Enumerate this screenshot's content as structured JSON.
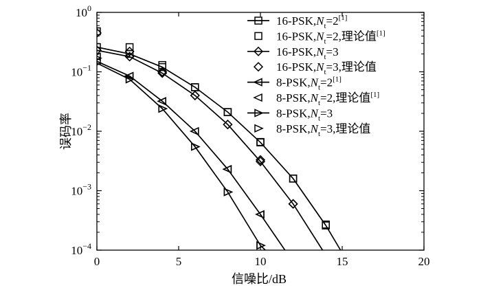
{
  "chart_data": {
    "type": "line",
    "title": "",
    "xlabel": "信噪比/dB",
    "ylabel": "误码率",
    "xlim": [
      0,
      20
    ],
    "ylim": [
      0.0001,
      1
    ],
    "yscale": "log",
    "grid": false,
    "legend_position": "top-right",
    "x_ticks": [
      0,
      5,
      10,
      15,
      20
    ],
    "y_ticks": [
      {
        "value": 1,
        "base": "10",
        "exp": "0"
      },
      {
        "value": 0.1,
        "base": "10",
        "exp": "−1"
      },
      {
        "value": 0.01,
        "base": "10",
        "exp": "−2"
      },
      {
        "value": 0.001,
        "base": "10",
        "exp": "−3"
      },
      {
        "value": 0.0001,
        "base": "10",
        "exp": "−4"
      }
    ],
    "series": [
      {
        "label": {
          "pre": "16-PSK,",
          "italic": "N",
          "sub": "t",
          "post": "=2",
          "sup": "[1]"
        },
        "marker": "square",
        "line": true,
        "x": [
          0,
          2,
          4,
          6,
          8,
          10,
          12,
          14,
          14.9
        ],
        "y": [
          0.26,
          0.2,
          0.12,
          0.055,
          0.021,
          0.0065,
          0.0016,
          0.00026,
          0.0001
        ]
      },
      {
        "label": {
          "pre": "16-PSK,",
          "italic": "N",
          "sub": "t",
          "post": "=2,理论值",
          "sup": "[1]"
        },
        "marker": "square",
        "line": false,
        "x": [
          0,
          2,
          4,
          6,
          8,
          10,
          12,
          14
        ],
        "y": [
          0.48,
          0.26,
          0.13,
          0.055,
          0.021,
          0.0066,
          0.0016,
          0.00027
        ]
      },
      {
        "label": {
          "pre": "16-PSK,",
          "italic": "N",
          "sub": "t",
          "post": "=3",
          "sup": ""
        },
        "marker": "diamond",
        "line": true,
        "x": [
          0,
          2,
          4,
          6,
          8,
          10,
          12,
          13.8
        ],
        "y": [
          0.23,
          0.18,
          0.095,
          0.04,
          0.013,
          0.0031,
          0.0006,
          0.0001
        ]
      },
      {
        "label": {
          "pre": "16-PSK,",
          "italic": "N",
          "sub": "t",
          "post": "=3,理论值",
          "sup": ""
        },
        "marker": "diamond",
        "line": false,
        "x": [
          0,
          2,
          4,
          6,
          8,
          10,
          12
        ],
        "y": [
          0.45,
          0.22,
          0.1,
          0.04,
          0.013,
          0.0033,
          0.0006
        ]
      },
      {
        "label": {
          "pre": "8-PSK,",
          "italic": "N",
          "sub": "t",
          "post": "=2",
          "sup": "[1]"
        },
        "marker": "triangle-left",
        "line": true,
        "x": [
          0,
          2,
          4,
          6,
          8,
          10,
          11.5
        ],
        "y": [
          0.15,
          0.085,
          0.032,
          0.01,
          0.0023,
          0.0004,
          0.0001
        ]
      },
      {
        "label": {
          "pre": "8-PSK,",
          "italic": "N",
          "sub": "t",
          "post": "=2,理论值",
          "sup": "[1]"
        },
        "marker": "triangle-left",
        "line": false,
        "x": [
          0,
          2,
          4,
          6,
          8,
          10
        ],
        "y": [
          0.18,
          0.085,
          0.032,
          0.01,
          0.0023,
          0.0004
        ]
      },
      {
        "label": {
          "pre": "8-PSK,",
          "italic": "N",
          "sub": "t",
          "post": "=3",
          "sup": ""
        },
        "marker": "triangle-right",
        "line": true,
        "x": [
          0,
          2,
          4,
          6,
          8,
          10,
          10.3
        ],
        "y": [
          0.14,
          0.075,
          0.024,
          0.0055,
          0.00095,
          0.00012,
          0.0001
        ]
      },
      {
        "label": {
          "pre": "8-PSK,",
          "italic": "N",
          "sub": "t",
          "post": "=3,理论值",
          "sup": ""
        },
        "marker": "triangle-right",
        "line": false,
        "x": [
          0,
          2,
          4,
          6,
          8,
          10
        ],
        "y": [
          0.17,
          0.075,
          0.024,
          0.0055,
          0.00095,
          0.00012
        ]
      }
    ]
  }
}
